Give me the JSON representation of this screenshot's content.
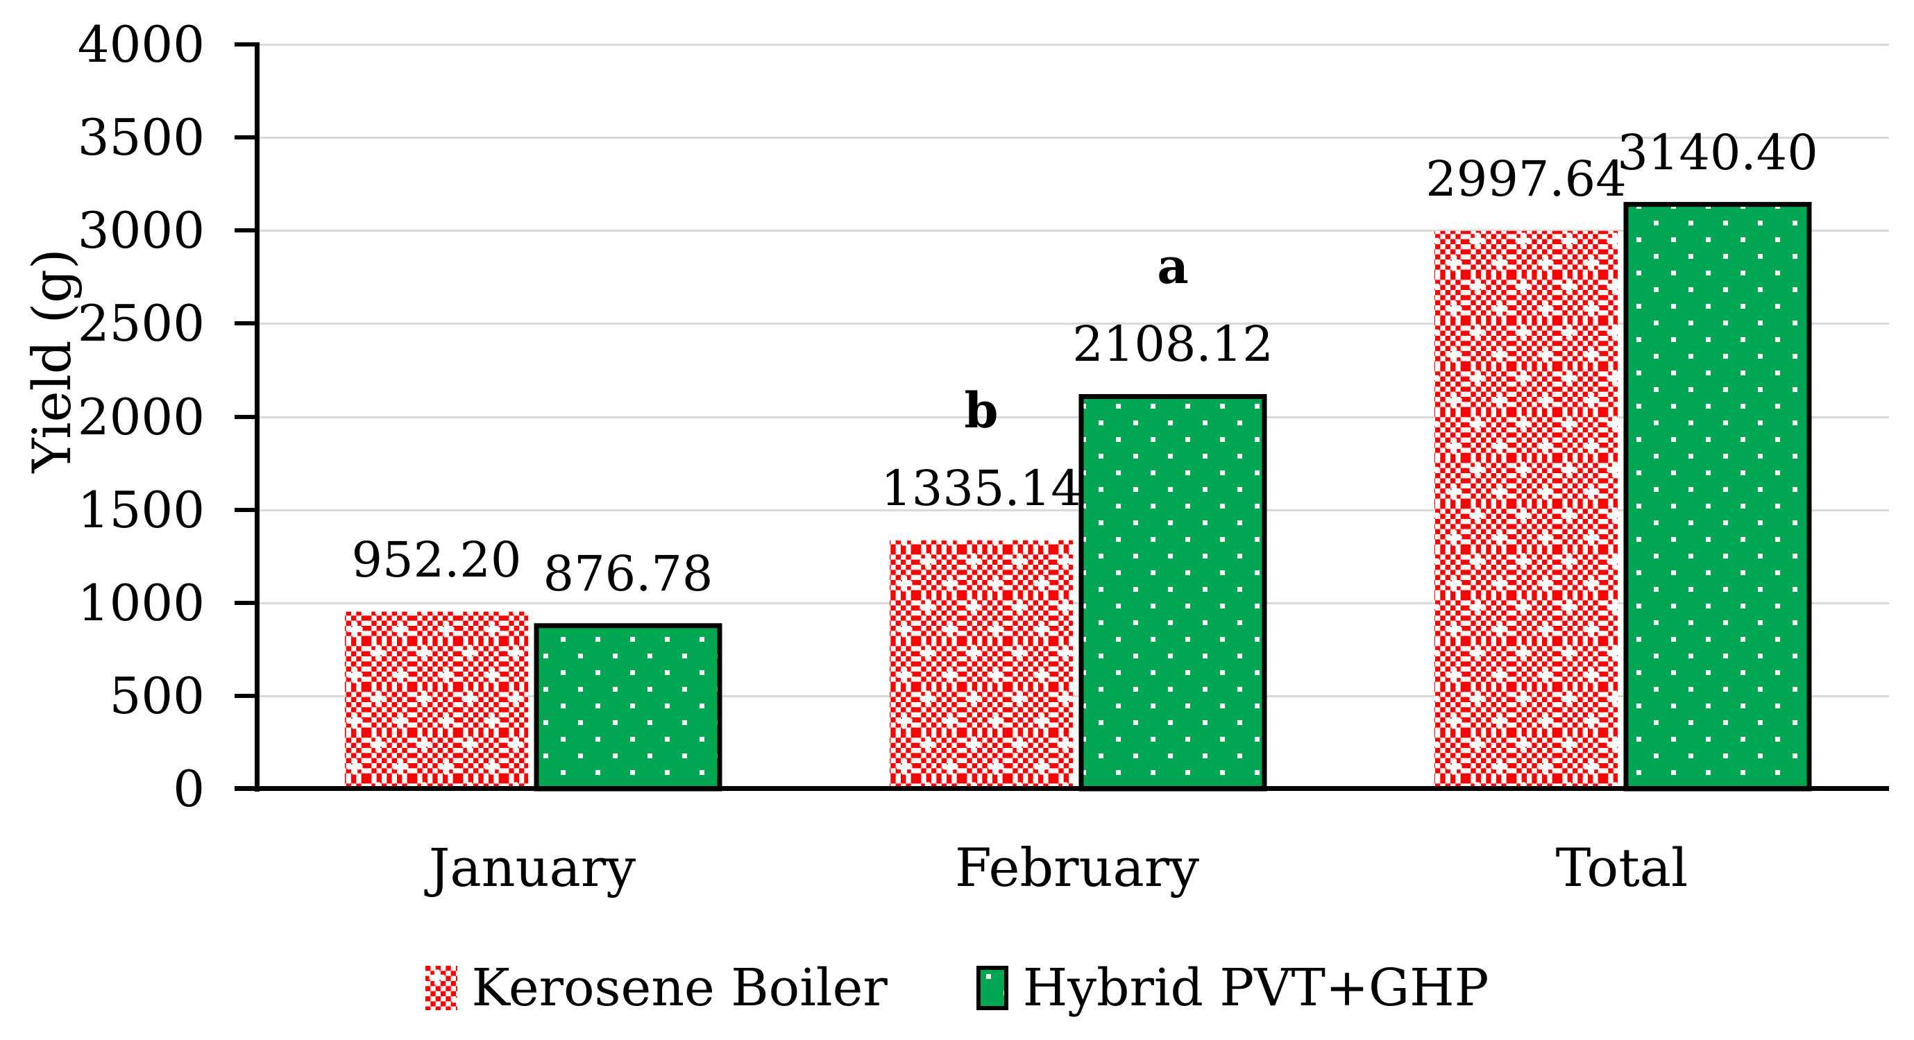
{
  "chart_data": {
    "type": "bar",
    "title": "",
    "xlabel": "",
    "ylabel": "Yield (g)",
    "categories": [
      "January",
      "February",
      "Total"
    ],
    "series": [
      {
        "name": "Kerosene Boiler",
        "values": [
          952.2,
          1335.14,
          2997.64
        ],
        "labels": [
          "952.20",
          "1335.14",
          "2997.64"
        ],
        "color": "#FF0000",
        "pattern": "red-checker",
        "border": false
      },
      {
        "name": "Hybrid PVT+GHP",
        "values": [
          876.78,
          2108.12,
          3140.4
        ],
        "labels": [
          "876.78",
          "2108.12",
          "3140.40"
        ],
        "color": "#00A651",
        "pattern": "green-dots",
        "border": true
      }
    ],
    "annotations": [
      {
        "text": "b",
        "category": "February",
        "series": "Kerosene Boiler"
      },
      {
        "text": "a",
        "category": "February",
        "series": "Hybrid PVT+GHP"
      }
    ],
    "ylim": [
      0,
      4000
    ],
    "ytick_step": 500,
    "yticks": [
      "0",
      "500",
      "1000",
      "1500",
      "2000",
      "2500",
      "3000",
      "3500",
      "4000"
    ],
    "grid": true,
    "legend_position": "bottom",
    "colors": {
      "red_series": "#FF0000",
      "green_series": "#00A651",
      "grid": "#D9D9D9",
      "axis": "#000000",
      "text": "#000000",
      "pattern_dot": "#FFFFFF"
    }
  }
}
